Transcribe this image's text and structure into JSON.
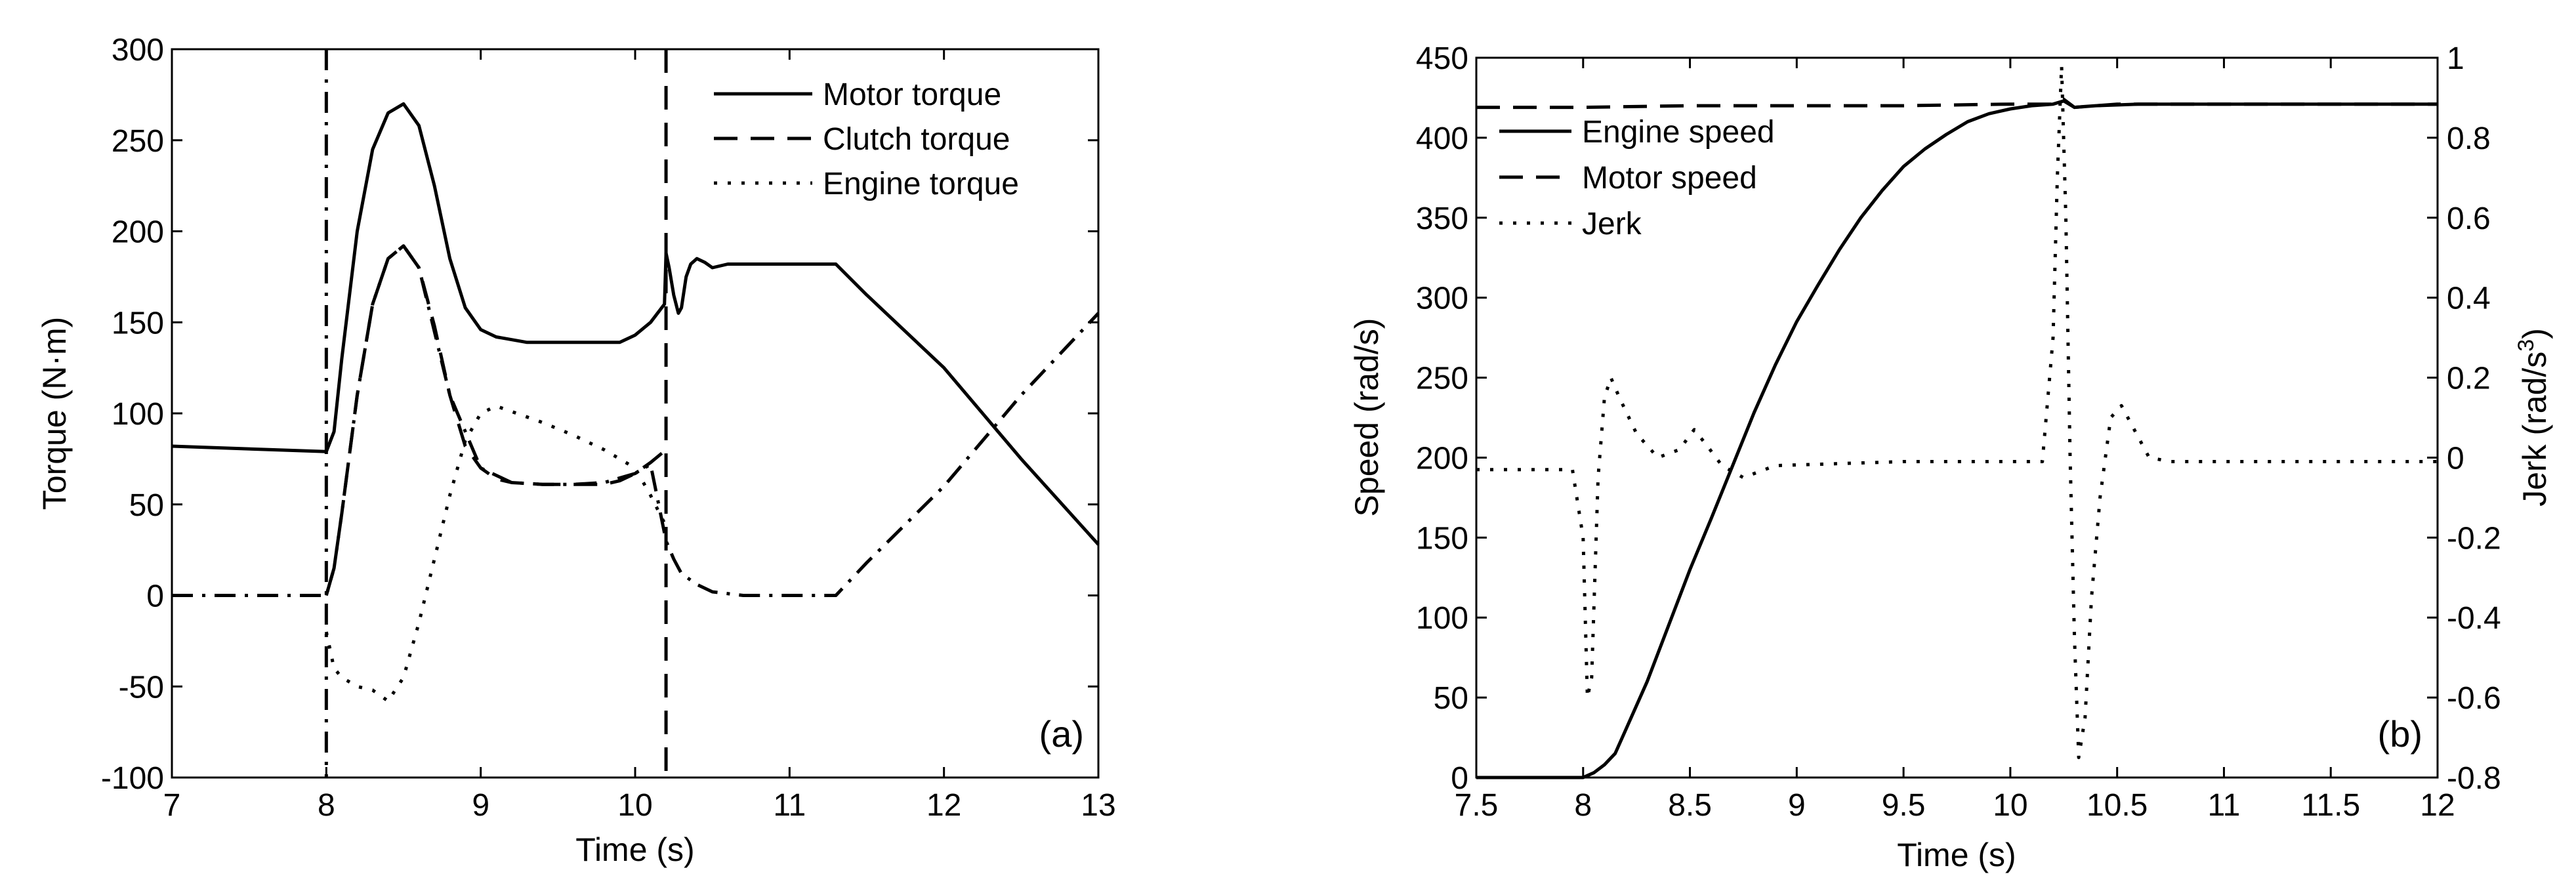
{
  "chart_data": [
    {
      "type": "line",
      "panel_label": "(a)",
      "xlabel": "Time (s)",
      "ylabel": "Torque (N·m)",
      "xlim": [
        7,
        13
      ],
      "ylim": [
        -100,
        300
      ],
      "xticks": [
        "7",
        "8",
        "9",
        "10",
        "11",
        "12",
        "13"
      ],
      "yticks": [
        "-100",
        "-50",
        "0",
        "50",
        "100",
        "150",
        "200",
        "250",
        "300"
      ],
      "legend_position": "top-right",
      "grid": false,
      "vlines": [
        {
          "x": 8.0,
          "style": "dash-dot"
        },
        {
          "x": 10.2,
          "style": "dashed"
        }
      ],
      "series": [
        {
          "name": "Motor torque",
          "style": "solid",
          "x": [
            7.0,
            8.0,
            8.05,
            8.1,
            8.2,
            8.3,
            8.4,
            8.5,
            8.6,
            8.7,
            8.8,
            8.9,
            9.0,
            9.1,
            9.3,
            9.5,
            9.7,
            9.9,
            10.0,
            10.1,
            10.19,
            10.2,
            10.22,
            10.25,
            10.28,
            10.3,
            10.33,
            10.36,
            10.4,
            10.45,
            10.5,
            10.6,
            10.8,
            11.0,
            11.3,
            11.5,
            12.0,
            12.5,
            13.0
          ],
          "y": [
            82,
            79,
            90,
            130,
            200,
            245,
            265,
            270,
            258,
            225,
            185,
            158,
            146,
            142,
            139,
            139,
            139,
            139,
            143,
            150,
            160,
            188,
            180,
            165,
            155,
            158,
            175,
            182,
            185,
            183,
            180,
            182,
            182,
            182,
            182,
            165,
            125,
            75,
            28
          ]
        },
        {
          "name": "Clutch torque",
          "style": "dashed",
          "x": [
            8.0,
            8.05,
            8.1,
            8.2,
            8.3,
            8.4,
            8.5,
            8.6,
            8.7,
            8.8,
            8.9,
            9.0,
            9.1,
            9.2,
            9.4,
            9.6,
            9.8,
            9.9,
            10.0,
            10.1,
            10.2
          ],
          "y": [
            0,
            15,
            45,
            110,
            160,
            185,
            192,
            180,
            148,
            110,
            82,
            70,
            64,
            62,
            61,
            61,
            61,
            63,
            67,
            73,
            80
          ]
        },
        {
          "name": "Engine torque",
          "style": "dotted",
          "x": [
            8.0,
            8.05,
            8.1,
            8.2,
            8.3,
            8.4,
            8.5,
            8.6,
            8.7,
            8.8,
            8.9,
            9.0,
            9.1,
            9.2,
            9.4,
            9.6,
            9.8,
            10.0,
            10.1,
            10.2
          ],
          "y": [
            -20,
            -40,
            -45,
            -50,
            -52,
            -58,
            -45,
            -15,
            20,
            55,
            85,
            100,
            104,
            101,
            95,
            88,
            80,
            70,
            55,
            38
          ]
        },
        {
          "style": "dash-dot",
          "x": [
            7.0,
            8.0,
            8.05,
            8.1,
            8.2,
            8.3,
            8.4,
            8.5,
            8.6,
            8.8,
            9.0,
            9.2,
            9.4,
            9.6,
            9.8,
            10.0,
            10.1,
            10.2,
            10.25,
            10.3,
            10.4,
            10.5,
            10.7,
            11.0,
            11.3,
            11.5,
            12.0,
            12.5,
            13.0
          ],
          "y": [
            0,
            0,
            15,
            45,
            110,
            160,
            185,
            192,
            180,
            110,
            70,
            62,
            61,
            61,
            62,
            67,
            72,
            30,
            20,
            12,
            6,
            2,
            0,
            0,
            0,
            18,
            60,
            110,
            155
          ]
        }
      ]
    },
    {
      "type": "line",
      "panel_label": "(b)",
      "xlabel": "Time (s)",
      "ylabel": "Speed (rad/s)",
      "y2label_main": "Jerk (rad/s",
      "y2label_sup": "3",
      "y2label_tail": ")",
      "xlim": [
        7.5,
        12
      ],
      "ylim": [
        0,
        450
      ],
      "y2lim": [
        -0.8,
        1
      ],
      "xticks": [
        "7.5",
        "8",
        "8.5",
        "9",
        "9.5",
        "10",
        "10.5",
        "11",
        "11.5",
        "12"
      ],
      "yticks": [
        "0",
        "50",
        "100",
        "150",
        "200",
        "250",
        "300",
        "350",
        "400",
        "450"
      ],
      "y2ticks": [
        "-0.8",
        "-0.6",
        "-0.4",
        "-0.2",
        "0",
        "0.2",
        "0.4",
        "0.6",
        "0.8",
        "1"
      ],
      "legend_position": "top-left",
      "grid": false,
      "series": [
        {
          "name": "Engine speed",
          "style": "solid",
          "axis": "left",
          "x": [
            7.5,
            8.0,
            8.05,
            8.1,
            8.15,
            8.2,
            8.3,
            8.4,
            8.5,
            8.6,
            8.7,
            8.8,
            8.9,
            9.0,
            9.1,
            9.2,
            9.3,
            9.4,
            9.5,
            9.6,
            9.7,
            9.8,
            9.9,
            10.0,
            10.1,
            10.2,
            10.25,
            10.3,
            10.4,
            10.6,
            11.0,
            11.5,
            12.0
          ],
          "y": [
            0,
            0,
            3,
            8,
            15,
            30,
            60,
            95,
            130,
            162,
            195,
            228,
            258,
            285,
            308,
            330,
            350,
            367,
            382,
            393,
            402,
            410,
            415,
            418,
            420,
            421,
            423,
            419,
            420,
            421,
            421,
            421,
            421
          ]
        },
        {
          "name": "Motor speed",
          "style": "dashed",
          "axis": "left",
          "x": [
            7.5,
            8.0,
            8.5,
            9.0,
            9.5,
            10.0,
            10.2,
            10.25,
            10.3,
            10.5,
            11.0,
            11.5,
            12.0
          ],
          "y": [
            419,
            419,
            420,
            420,
            420,
            421,
            421,
            424,
            419,
            421,
            421,
            421,
            421
          ]
        },
        {
          "name": "Jerk",
          "style": "dotted",
          "axis": "right",
          "x": [
            7.5,
            7.95,
            8.0,
            8.02,
            8.04,
            8.07,
            8.1,
            8.13,
            8.17,
            8.25,
            8.35,
            8.45,
            8.52,
            8.58,
            8.65,
            8.75,
            8.9,
            9.5,
            10.0,
            10.15,
            10.2,
            10.22,
            10.24,
            10.26,
            10.28,
            10.3,
            10.32,
            10.35,
            10.38,
            10.42,
            10.47,
            10.52,
            10.57,
            10.65,
            10.75,
            11.0,
            12.0
          ],
          "y": [
            -0.03,
            -0.03,
            -0.2,
            -0.6,
            -0.55,
            -0.05,
            0.15,
            0.2,
            0.15,
            0.06,
            0.0,
            0.02,
            0.07,
            0.03,
            -0.02,
            -0.05,
            -0.02,
            -0.01,
            -0.01,
            -0.01,
            0.3,
            0.7,
            0.98,
            0.6,
            0.0,
            -0.45,
            -0.75,
            -0.65,
            -0.35,
            -0.1,
            0.1,
            0.13,
            0.08,
            0.0,
            -0.01,
            -0.01,
            -0.01
          ]
        }
      ]
    }
  ]
}
